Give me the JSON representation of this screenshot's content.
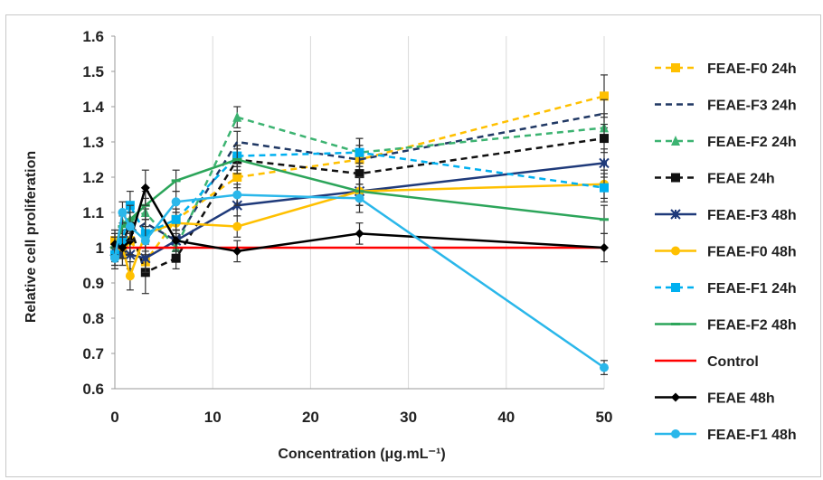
{
  "chart_data": {
    "type": "line",
    "xlabel": "Concentration (μg.mL⁻¹)",
    "ylabel": "Relative cell proliferation",
    "xlim": [
      0,
      50
    ],
    "ylim": [
      0.6,
      1.6
    ],
    "x_ticks": [
      "0",
      "10",
      "20",
      "30",
      "40",
      "50"
    ],
    "y_ticks": [
      "0.6",
      "0.7",
      "0.8",
      "0.9",
      "1",
      "1.1",
      "1.2",
      "1.3",
      "1.4",
      "1.5",
      "1.6"
    ],
    "grid": "vertical",
    "legend_position": "right",
    "x": [
      0,
      0.78,
      1.56,
      3.125,
      6.25,
      12.5,
      25,
      50
    ],
    "series": [
      {
        "name": "FEAE-F0 24h",
        "color": "#ffc000",
        "dash": true,
        "marker": "square",
        "values": [
          1.02,
          0.98,
          1.02,
          0.96,
          1.08,
          1.2,
          1.25,
          1.43
        ],
        "errors": [
          0.03,
          0.03,
          0.04,
          0.04,
          0.03,
          0.03,
          0.04,
          0.06
        ]
      },
      {
        "name": "FEAE-F3 24h",
        "color": "#203864",
        "dash": true,
        "marker": "none",
        "values": [
          1.0,
          1.02,
          1.04,
          1.07,
          1.02,
          1.3,
          1.25,
          1.38
        ],
        "errors": [
          0.03,
          0.03,
          0.04,
          0.04,
          0.03,
          0.03,
          0.04,
          0.04
        ]
      },
      {
        "name": "FEAE-F2 24h",
        "color": "#3cb371",
        "dash": true,
        "marker": "triangle",
        "values": [
          1.01,
          1.07,
          1.08,
          1.1,
          1.0,
          1.37,
          1.27,
          1.34
        ],
        "errors": [
          0.03,
          0.03,
          0.04,
          0.04,
          0.03,
          0.03,
          0.04,
          0.04
        ]
      },
      {
        "name": "FEAE 24h",
        "color": "#111111",
        "dash": true,
        "marker": "square",
        "values": [
          0.98,
          1.02,
          1.06,
          0.93,
          0.97,
          1.25,
          1.21,
          1.31
        ],
        "errors": [
          0.03,
          0.03,
          0.04,
          0.06,
          0.03,
          0.04,
          0.03,
          0.04
        ]
      },
      {
        "name": "FEAE-F3 48h",
        "color": "#1f3a7a",
        "dash": false,
        "marker": "star",
        "values": [
          0.99,
          0.98,
          0.98,
          0.97,
          1.02,
          1.12,
          1.16,
          1.24
        ],
        "errors": [
          0.03,
          0.03,
          0.04,
          0.04,
          0.03,
          0.03,
          0.04,
          0.04
        ]
      },
      {
        "name": "FEAE-F0 48h",
        "color": "#ffc000",
        "dash": false,
        "marker": "circle",
        "values": [
          1.02,
          1.0,
          0.92,
          1.04,
          1.07,
          1.06,
          1.16,
          1.18
        ],
        "errors": [
          0.03,
          0.03,
          0.04,
          0.04,
          0.03,
          0.03,
          0.04,
          0.04
        ]
      },
      {
        "name": "FEAE-F1 24h",
        "color": "#00b0f0",
        "dash": true,
        "marker": "square",
        "values": [
          0.98,
          1.02,
          1.12,
          1.04,
          1.08,
          1.26,
          1.27,
          1.17
        ],
        "errors": [
          0.03,
          0.03,
          0.04,
          0.04,
          0.03,
          0.03,
          0.04,
          0.04
        ]
      },
      {
        "name": "FEAE-F2 48h",
        "color": "#2ca55a",
        "dash": false,
        "marker": "dash",
        "values": [
          1.0,
          1.06,
          1.08,
          1.12,
          1.19,
          1.25,
          1.16,
          1.08
        ],
        "errors": [
          0.03,
          0.03,
          0.04,
          0.04,
          0.03,
          0.03,
          0.04,
          0.04
        ]
      },
      {
        "name": "Control",
        "color": "#ff0000",
        "dash": false,
        "marker": "none",
        "values": [
          1.0,
          1.0,
          1.0,
          1.0,
          1.0,
          1.0,
          1.0,
          1.0
        ],
        "errors": [
          0,
          0,
          0,
          0,
          0,
          0,
          0,
          0
        ]
      },
      {
        "name": "FEAE 48h",
        "color": "#000000",
        "dash": false,
        "marker": "diamond",
        "values": [
          1.01,
          1.0,
          1.02,
          1.17,
          1.02,
          0.99,
          1.04,
          1.0
        ],
        "errors": [
          0.03,
          0.03,
          0.04,
          0.05,
          0.03,
          0.03,
          0.03,
          0.04
        ]
      },
      {
        "name": "FEAE-F1 48h",
        "color": "#2ab7ea",
        "dash": false,
        "marker": "circle",
        "values": [
          0.97,
          1.1,
          1.06,
          1.02,
          1.13,
          1.15,
          1.14,
          0.66
        ],
        "errors": [
          0.03,
          0.03,
          0.04,
          0.04,
          0.03,
          0.03,
          0.04,
          0.02
        ]
      }
    ]
  }
}
